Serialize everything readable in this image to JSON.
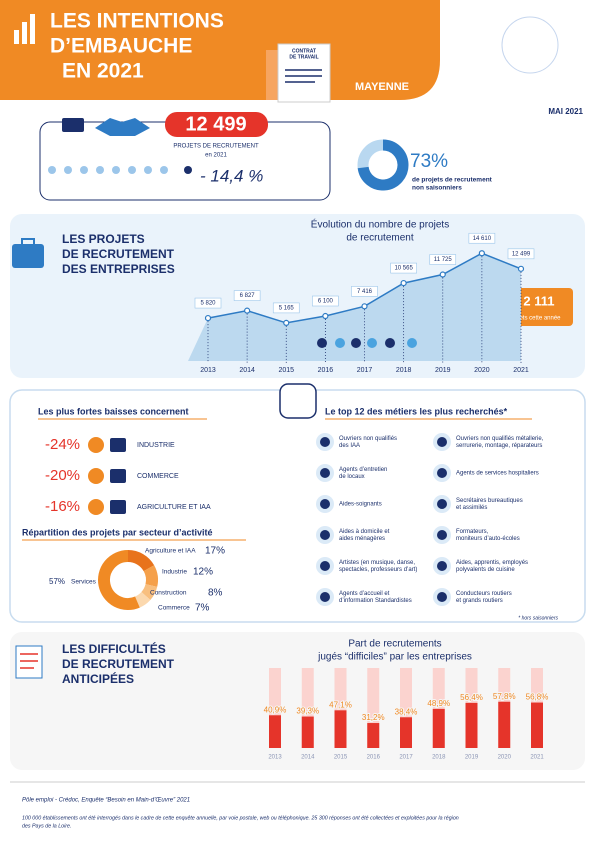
{
  "header": {
    "title": [
      "LES INTENTIONS",
      "D’EMBAUCHE",
      "EN 2021"
    ],
    "doc_label": [
      "CONTRAT",
      "DE TRAVAIL"
    ],
    "region": "MAYENNE",
    "date": "MAI 2021"
  },
  "summary": {
    "total": "12 499",
    "total_label": [
      "PROJETS DE RECRUTEMENT",
      "en 2021"
    ],
    "change": "- 14,4 %"
  },
  "projects_section": {
    "title": [
      "LES PROJETS",
      "DE RECRUTEMENT",
      "DES ENTREPRISES"
    ],
    "badge": "- 2 111",
    "badge_label": "projets cette année"
  },
  "declines": {
    "title": "Les plus fortes baisses concernent",
    "items": [
      {
        "value": "-24%",
        "label": "INDUSTRIE"
      },
      {
        "value": "-20%",
        "label": "COMMERCE"
      },
      {
        "value": "-16%",
        "label": "AGRICULTURE ET IAA"
      }
    ]
  },
  "top_jobs": {
    "title": "Le top 12 des métiers les plus recherchés*",
    "items": [
      [
        "Ouvriers non qualifiés",
        "des IAA"
      ],
      [
        "Ouvriers non qualifiés métallerie,",
        "serrurerie, montage, réparateurs"
      ],
      [
        "Agents d’entretien",
        "de locaux"
      ],
      [
        "Agents de services hospitaliers"
      ],
      [
        "Aides-soignants"
      ],
      [
        "Secrétaires bureautiques",
        "et assimilés"
      ],
      [
        "Aides à domicile et",
        "aides ménagères"
      ],
      [
        "Formateurs,",
        "moniteurs d’auto-écoles"
      ],
      [
        "Artistes (en musique, danse,",
        "spectacles, professeurs d’art)"
      ],
      [
        "Aides, apprentis, employés",
        "polyvalents de cuisine"
      ],
      [
        "Agents d’accueil et",
        "d’information Standardistes"
      ],
      [
        "Conducteurs routiers",
        "et grands routiers"
      ]
    ],
    "note": "* hors saisonniers"
  },
  "difficulty_section": {
    "title": [
      "LES DIFFICULTÉS",
      "DE RECRUTEMENT",
      "ANTICIPÉES"
    ]
  },
  "chart_data": [
    {
      "type": "line",
      "title": [
        "Évolution du nombre de projets",
        "de recrutement"
      ],
      "categories": [
        "2013",
        "2014",
        "2015",
        "2016",
        "2017",
        "2018",
        "2019",
        "2020",
        "2021"
      ],
      "values": [
        5820,
        6827,
        5165,
        6100,
        7416,
        10565,
        11725,
        14610,
        12499
      ],
      "value_labels": [
        "5 820",
        "6 827",
        "5 165",
        "6 100",
        "7 416",
        "10 565",
        "11 725",
        "14 610",
        "12 499"
      ],
      "ylim": [
        0,
        16000
      ],
      "color": "#2e7bc4"
    },
    {
      "type": "donut",
      "values": [
        73
      ],
      "value_labels": [
        "73%"
      ],
      "label": [
        "de projets de recrutement",
        "non saisonniers"
      ],
      "color": "#2e7bc4"
    },
    {
      "type": "donut",
      "title": "Répartition des projets par secteur d’activité",
      "categories": [
        "Agriculture et IAA",
        "Industrie",
        "Construction",
        "Commerce",
        "Services"
      ],
      "values": [
        17,
        12,
        8,
        7,
        57
      ],
      "value_labels": [
        "17%",
        "12%",
        "8%",
        "7%",
        "57%"
      ],
      "colors": [
        "#e8731c",
        "#f5a04a",
        "#f8bf7f",
        "#fbd8ae",
        "#f08a24"
      ]
    },
    {
      "type": "bar",
      "title": [
        "Part de recrutements",
        "jugés “difficiles” par les entreprises"
      ],
      "categories": [
        "2013",
        "2014",
        "2015",
        "2016",
        "2017",
        "2018",
        "2019",
        "2020",
        "2021"
      ],
      "values": [
        40.9,
        39.3,
        47.1,
        31.2,
        38.4,
        48.9,
        56.4,
        57.8,
        56.8
      ],
      "value_labels": [
        "40,9%",
        "39,3%",
        "47,1%",
        "31,2%",
        "38,4%",
        "48,9%",
        "56,4%",
        "57,8%",
        "56,8%"
      ],
      "ylim": [
        0,
        100
      ],
      "color": "#e5342a"
    }
  ],
  "footer": {
    "source": "Pôle emploi - Crédoc, Enquête “Besoin en Main-d’Œuvre” 2021",
    "note": [
      "100 000 établissements ont été interrogés dans le cadre de cette enquête annuelle, par voie postale, web ou téléphonique. 25 300 réponses ont été collectées et exploitées pour la région",
      "des Pays de la Loire."
    ]
  }
}
